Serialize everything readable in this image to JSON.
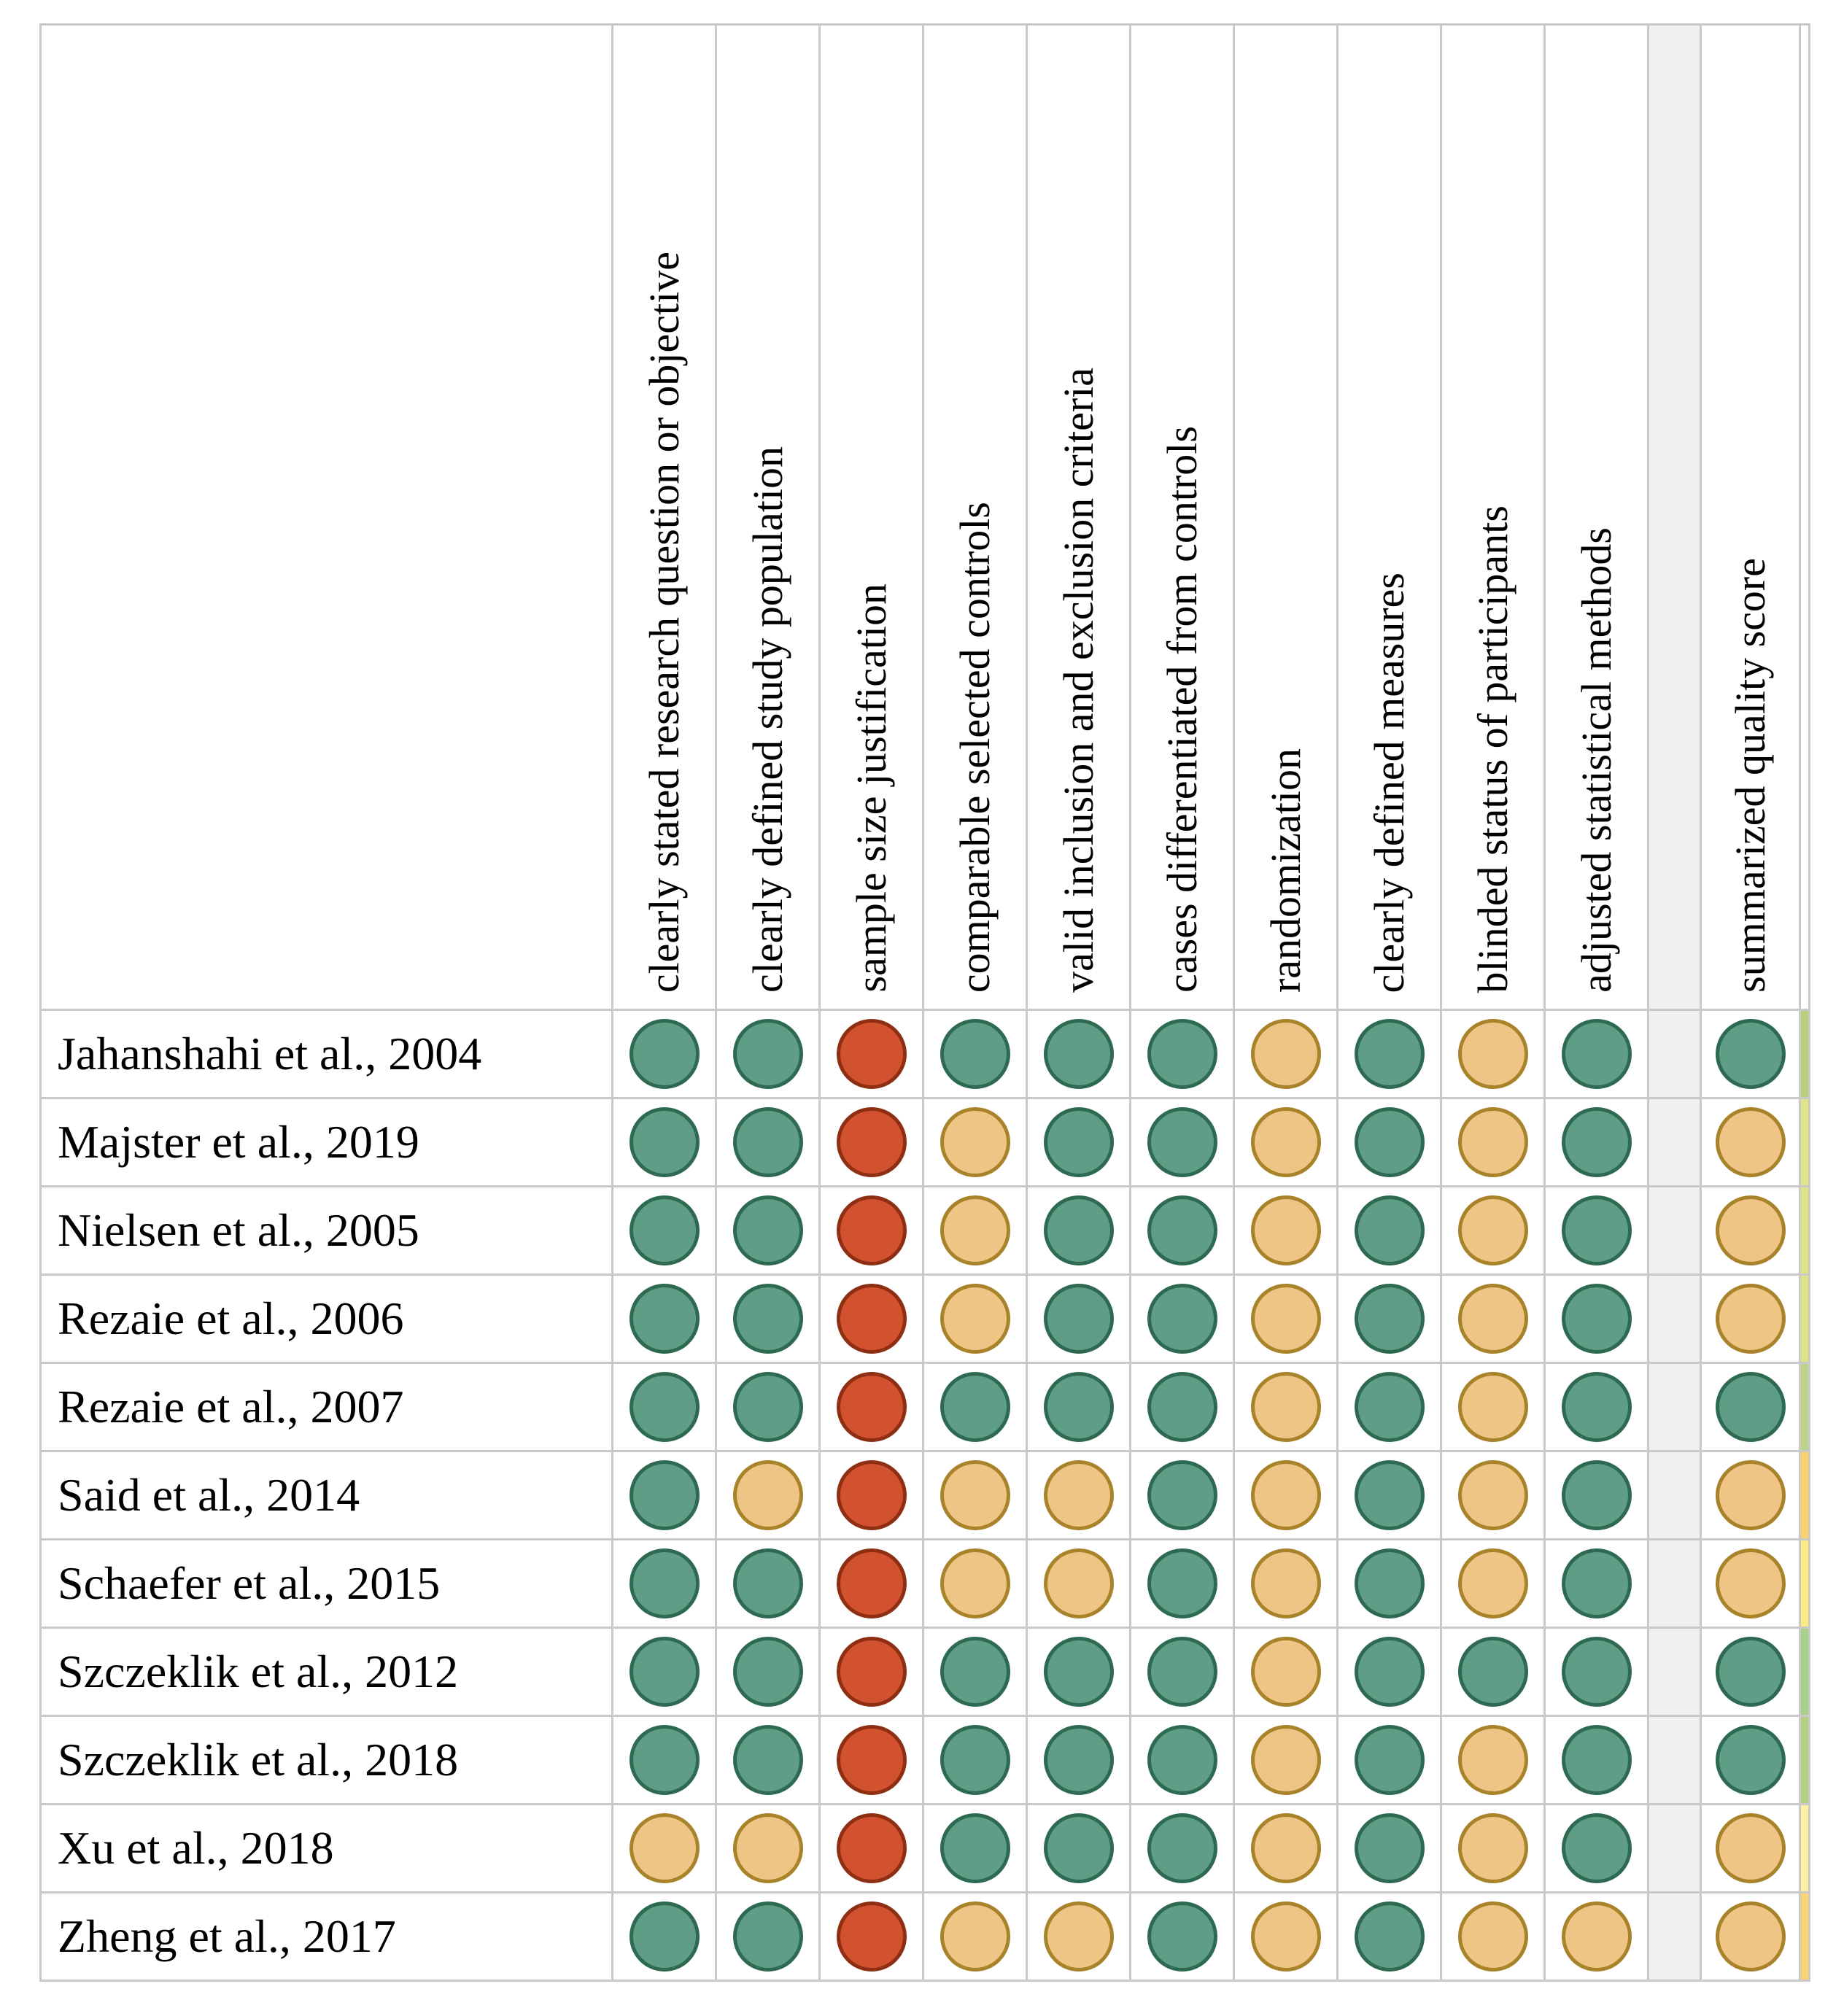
{
  "table": {
    "criteria": [
      "clearly stated research question or objective",
      "clearly defined study population",
      "sample size justification",
      "comparable selected controls",
      "valid inclusion and exclusion criteria",
      "cases differentiated from controls",
      "randomization",
      "clearly defined measures",
      "blinded status of participants",
      "adjusted statistical methods"
    ],
    "summary_header": "summarized quality score",
    "rating_colors": {
      "green": {
        "fill": "#5f9d86",
        "border": "#2e6a52"
      },
      "yellow": {
        "fill": "#eec584",
        "border": "#a8832a"
      },
      "red": {
        "fill": "#d2512e",
        "border": "#8e2f14"
      }
    },
    "grid_color": "#c9c9c9",
    "spacer_color": "#f0f0f0",
    "rows": [
      {
        "study": "Jahanshahi et al., 2004",
        "ratings": [
          "green",
          "green",
          "red",
          "green",
          "green",
          "green",
          "yellow",
          "green",
          "yellow",
          "green"
        ],
        "summary": "green",
        "scale_color": "#b9cf7c"
      },
      {
        "study": "Majster et al., 2019",
        "ratings": [
          "green",
          "green",
          "red",
          "yellow",
          "green",
          "green",
          "yellow",
          "green",
          "yellow",
          "green"
        ],
        "summary": "yellow",
        "scale_color": "#e2e489"
      },
      {
        "study": "Nielsen et al., 2005",
        "ratings": [
          "green",
          "green",
          "red",
          "yellow",
          "green",
          "green",
          "yellow",
          "green",
          "yellow",
          "green"
        ],
        "summary": "yellow",
        "scale_color": "#e0e287"
      },
      {
        "study": "Rezaie et al., 2006",
        "ratings": [
          "green",
          "green",
          "red",
          "yellow",
          "green",
          "green",
          "yellow",
          "green",
          "yellow",
          "green"
        ],
        "summary": "yellow",
        "scale_color": "#e0e287"
      },
      {
        "study": "Rezaie et al., 2007",
        "ratings": [
          "green",
          "green",
          "red",
          "green",
          "green",
          "green",
          "yellow",
          "green",
          "yellow",
          "green"
        ],
        "summary": "green",
        "scale_color": "#bcd48a"
      },
      {
        "study": "Said et al., 2014",
        "ratings": [
          "green",
          "yellow",
          "red",
          "yellow",
          "yellow",
          "green",
          "yellow",
          "green",
          "yellow",
          "green"
        ],
        "summary": "yellow",
        "scale_color": "#fbd26e"
      },
      {
        "study": "Schaefer et al., 2015",
        "ratings": [
          "green",
          "green",
          "red",
          "yellow",
          "yellow",
          "green",
          "yellow",
          "green",
          "yellow",
          "green"
        ],
        "summary": "yellow",
        "scale_color": "#fceb83"
      },
      {
        "study": "Szczeklik et al., 2012",
        "ratings": [
          "green",
          "green",
          "red",
          "green",
          "green",
          "green",
          "yellow",
          "green",
          "green",
          "green"
        ],
        "summary": "green",
        "scale_color": "#a5d285"
      },
      {
        "study": "Szczeklik et al., 2018",
        "ratings": [
          "green",
          "green",
          "red",
          "green",
          "green",
          "green",
          "yellow",
          "green",
          "yellow",
          "green"
        ],
        "summary": "green",
        "scale_color": "#b3cf80"
      },
      {
        "study": "Xu et al., 2018",
        "ratings": [
          "yellow",
          "yellow",
          "red",
          "green",
          "green",
          "green",
          "yellow",
          "green",
          "yellow",
          "green"
        ],
        "summary": "yellow",
        "scale_color": "#fdf0a0"
      },
      {
        "study": "Zheng et al., 2017",
        "ratings": [
          "green",
          "green",
          "red",
          "yellow",
          "yellow",
          "green",
          "yellow",
          "green",
          "yellow",
          "yellow"
        ],
        "summary": "yellow",
        "scale_color": "#fbd571"
      }
    ]
  },
  "chart_data": {
    "type": "heatmap",
    "title": "",
    "rows": [
      "Jahanshahi et al., 2004",
      "Majster et al., 2019",
      "Nielsen et al., 2005",
      "Rezaie et al., 2006",
      "Rezaie et al., 2007",
      "Said et al., 2014",
      "Schaefer et al., 2015",
      "Szczeklik et al., 2012",
      "Szczeklik et al., 2018",
      "Xu et al., 2018",
      "Zheng et al., 2017"
    ],
    "columns": [
      "clearly stated research question or objective",
      "clearly defined study population",
      "sample size justification",
      "comparable selected controls",
      "valid inclusion and exclusion criteria",
      "cases differentiated from controls",
      "randomization",
      "clearly defined measures",
      "blinded status of participants",
      "adjusted statistical methods",
      "summarized quality score"
    ],
    "values": [
      [
        "green",
        "green",
        "red",
        "green",
        "green",
        "green",
        "yellow",
        "green",
        "yellow",
        "green",
        "green"
      ],
      [
        "green",
        "green",
        "red",
        "yellow",
        "green",
        "green",
        "yellow",
        "green",
        "yellow",
        "green",
        "yellow"
      ],
      [
        "green",
        "green",
        "red",
        "yellow",
        "green",
        "green",
        "yellow",
        "green",
        "yellow",
        "green",
        "yellow"
      ],
      [
        "green",
        "green",
        "red",
        "yellow",
        "green",
        "green",
        "yellow",
        "green",
        "yellow",
        "green",
        "yellow"
      ],
      [
        "green",
        "green",
        "red",
        "green",
        "green",
        "green",
        "yellow",
        "green",
        "yellow",
        "green",
        "green"
      ],
      [
        "green",
        "yellow",
        "red",
        "yellow",
        "yellow",
        "green",
        "yellow",
        "green",
        "yellow",
        "green",
        "yellow"
      ],
      [
        "green",
        "green",
        "red",
        "yellow",
        "yellow",
        "green",
        "yellow",
        "green",
        "yellow",
        "green",
        "yellow"
      ],
      [
        "green",
        "green",
        "red",
        "green",
        "green",
        "green",
        "yellow",
        "green",
        "green",
        "green",
        "green"
      ],
      [
        "green",
        "green",
        "red",
        "green",
        "green",
        "green",
        "yellow",
        "green",
        "yellow",
        "green",
        "green"
      ],
      [
        "yellow",
        "yellow",
        "red",
        "green",
        "green",
        "green",
        "yellow",
        "green",
        "yellow",
        "green",
        "yellow"
      ],
      [
        "green",
        "green",
        "red",
        "yellow",
        "yellow",
        "green",
        "yellow",
        "green",
        "yellow",
        "yellow",
        "yellow"
      ]
    ],
    "color_legend": {
      "green": "#5f9d86",
      "yellow": "#eec584",
      "red": "#d2512e"
    },
    "layout": {
      "column_headers_rotated": true,
      "grid": true
    }
  }
}
